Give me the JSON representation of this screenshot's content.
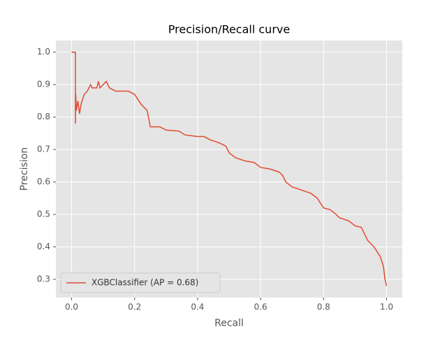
{
  "chart_data": {
    "type": "line",
    "title": "Precision/Recall curve",
    "x_label": "Recall",
    "y_label": "Precision",
    "x": [
      0,
      0.012,
      0.012,
      0.013,
      0.015,
      0.02,
      0.025,
      0.03,
      0.04,
      0.05,
      0.06,
      0.065,
      0.08,
      0.085,
      0.09,
      0.11,
      0.12,
      0.14,
      0.16,
      0.18,
      0.2,
      0.22,
      0.24,
      0.25,
      0.28,
      0.3,
      0.34,
      0.36,
      0.4,
      0.42,
      0.44,
      0.47,
      0.49,
      0.5,
      0.52,
      0.55,
      0.58,
      0.6,
      0.63,
      0.66,
      0.67,
      0.68,
      0.7,
      0.73,
      0.76,
      0.78,
      0.79,
      0.8,
      0.82,
      0.84,
      0.85,
      0.88,
      0.9,
      0.92,
      0.93,
      0.94,
      0.96,
      0.98,
      0.99,
      0.995,
      1.0
    ],
    "series": [
      {
        "name": "XGBClassifier (AP = 0.68)",
        "color": "#e24a33",
        "values": [
          1.0,
          1.0,
          0.78,
          0.87,
          0.82,
          0.85,
          0.81,
          0.84,
          0.87,
          0.88,
          0.9,
          0.89,
          0.89,
          0.91,
          0.89,
          0.91,
          0.89,
          0.88,
          0.88,
          0.88,
          0.87,
          0.84,
          0.82,
          0.77,
          0.77,
          0.76,
          0.757,
          0.745,
          0.74,
          0.74,
          0.73,
          0.72,
          0.71,
          0.69,
          0.675,
          0.665,
          0.66,
          0.645,
          0.64,
          0.63,
          0.62,
          0.6,
          0.585,
          0.575,
          0.565,
          0.55,
          0.535,
          0.52,
          0.515,
          0.5,
          0.49,
          0.48,
          0.465,
          0.46,
          0.44,
          0.42,
          0.4,
          0.37,
          0.34,
          0.3,
          0.28
        ]
      }
    ],
    "xlim": [
      -0.05,
      1.05
    ],
    "ylim": [
      0.244,
      1.036
    ],
    "xticks": [
      {
        "value": 0,
        "label": "0.0"
      },
      0.2,
      0.4,
      0.6,
      0.8,
      {
        "value": 1,
        "label": "1.0"
      }
    ],
    "yticks": [
      0.3,
      0.4,
      0.5,
      0.6,
      0.7,
      0.8,
      0.9,
      {
        "value": 1,
        "label": "1.0"
      }
    ],
    "grid": true,
    "legend_position": "lower-left"
  }
}
